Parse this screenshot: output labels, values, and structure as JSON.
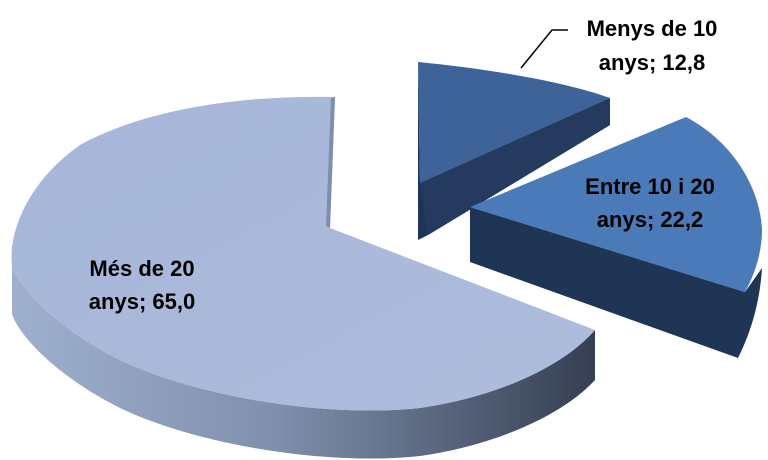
{
  "chart_data": {
    "type": "pie",
    "style": "3d-exploded",
    "slices": [
      {
        "label_line1": "Menys de 10",
        "label_line2": "anys; 12,8",
        "value": 12.8
      },
      {
        "label_line1": "Entre 10 i 20",
        "label_line2": "anys; 22,2",
        "value": 22.2
      },
      {
        "label_line1": "Més de 20",
        "label_line2": "anys; 65,0",
        "value": 65.0
      }
    ],
    "colors": {
      "menys_top": "#3d6399",
      "menys_side": "#1f3457",
      "entre_top": "#4a7ab8",
      "entre_side": "#1e3556",
      "mes_top": "#a9b8d8",
      "mes_side_light": "#8a9bb8",
      "mes_side_dark": "#3d4658"
    }
  }
}
